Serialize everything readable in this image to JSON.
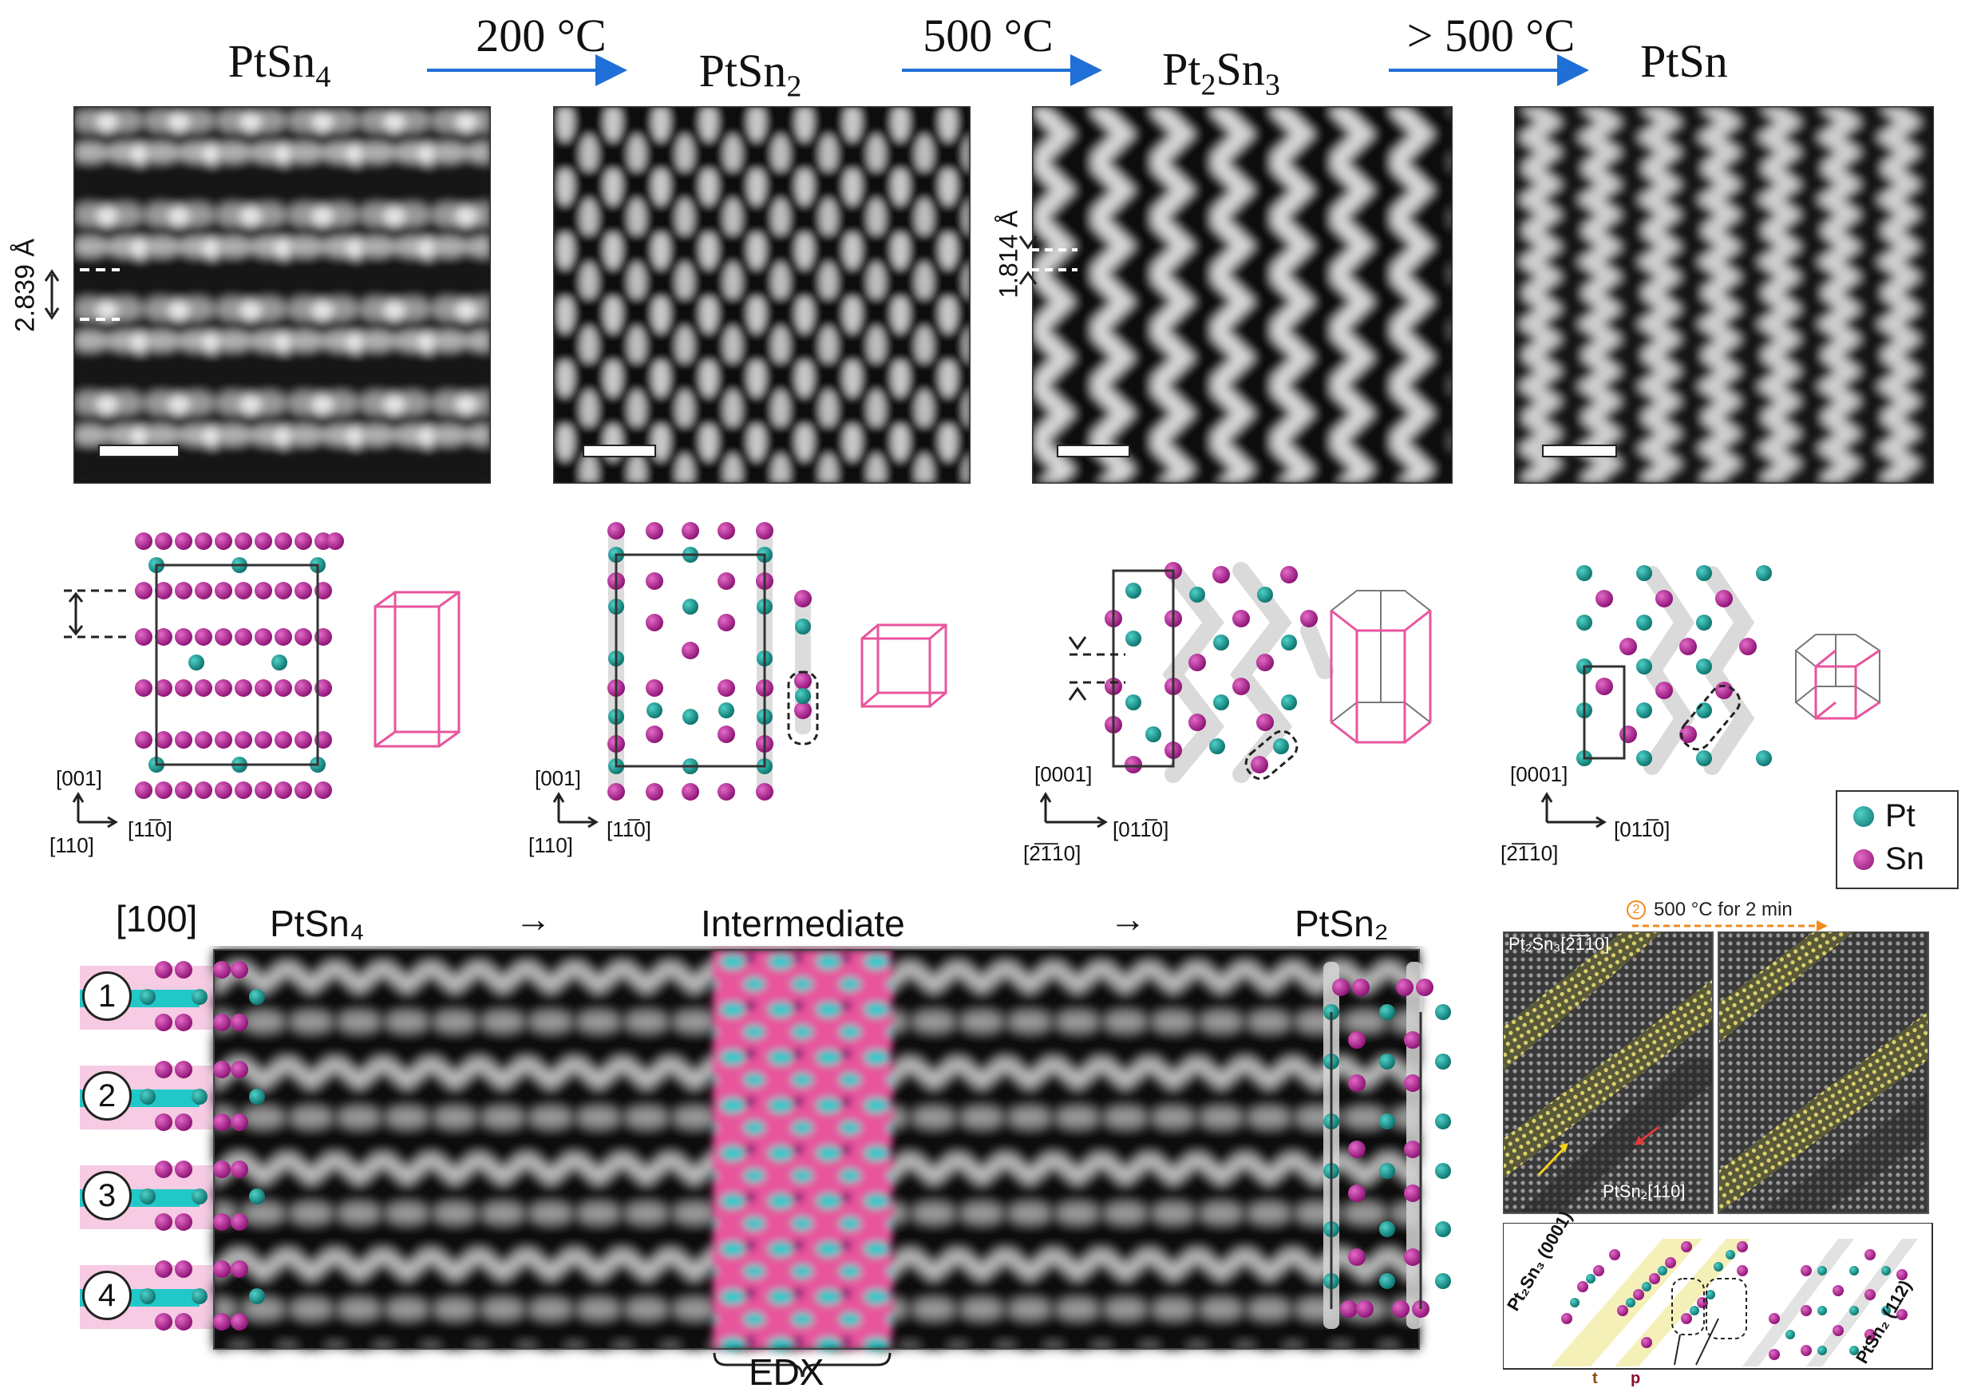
{
  "top_row": {
    "phases": [
      {
        "formula": "PtSn",
        "sub": "4"
      },
      {
        "formula": "PtSn",
        "sub": "2"
      },
      {
        "formula": "Pt",
        "sub1": "2",
        "mid": "Sn",
        "sub2": "3"
      },
      {
        "formula": "PtSn",
        "sub": ""
      }
    ],
    "transitions": [
      "200 °C",
      "500 °C",
      "> 500 °C"
    ],
    "measurements": [
      "2.839 Å",
      "1.814 Å"
    ]
  },
  "axes": [
    {
      "up": "[001]",
      "corner": "[110]",
      "right": "[11̅0]"
    },
    {
      "up": "[001]",
      "corner": "[110]",
      "right": "[11̅0]"
    },
    {
      "up": "[0001]",
      "corner": "[2̅1̅10]",
      "right": "[011̅0]"
    },
    {
      "up": "[0001]",
      "corner": "[2̅1̅10]",
      "right": "[011̅0]"
    }
  ],
  "legend": {
    "pt": "Pt",
    "sn": "Sn",
    "pt_color": "#0e8f8a",
    "sn_color": "#9c1680"
  },
  "bottom_panel": {
    "zone_axis": "[100]",
    "start": "PtSn₄",
    "arrow1": "→",
    "middle": "Intermediate",
    "arrow2": "→",
    "end": "PtSn₂",
    "rows": [
      "1",
      "2",
      "3",
      "4"
    ],
    "edx": "EDX"
  },
  "inset": {
    "step_number": "2",
    "step_label": "500 °C for 2 min",
    "img1_top": "Pt₂Sn₃[2̅1̅10]",
    "img1_bottom": "PtSn₂[110]",
    "model_left": "Pt₂Sn₃ (0001)",
    "model_right": "PtSn₂ (112)",
    "label_t": "t",
    "label_p": "p"
  },
  "colors": {
    "pink": "#e8559c",
    "arrow_blue": "#1f6fd6",
    "orange": "#f08a1c",
    "cyan": "#22c8c8"
  }
}
